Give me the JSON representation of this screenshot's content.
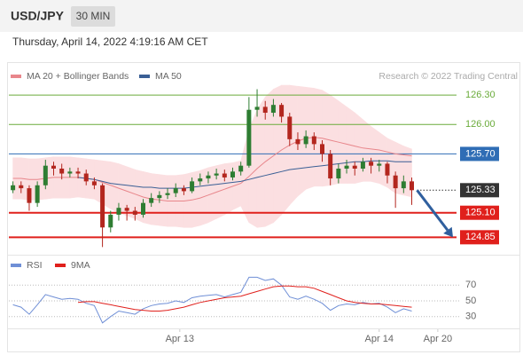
{
  "header": {
    "symbol": "USD/JPY",
    "interval": "30 MIN",
    "timestamp": "Thursday, April 14, 2022 4:19:16 AM CET"
  },
  "chart_data": [
    {
      "type": "candlestick",
      "annotation": "Research © 2022 Trading Central",
      "up_color": "#2e7d32",
      "down_color": "#b3261e",
      "x": [
        0,
        1,
        2,
        3,
        4,
        5,
        6,
        7,
        8,
        9,
        10,
        11,
        12,
        13,
        14,
        15,
        16,
        17,
        18,
        19,
        20,
        21,
        22,
        23,
        24,
        25,
        26,
        27,
        28,
        29,
        30,
        31,
        32,
        33,
        34,
        35,
        36,
        37,
        38,
        39,
        40,
        41,
        42,
        43,
        44,
        45,
        46,
        47,
        48,
        49
      ],
      "open": [
        125.33,
        125.38,
        125.35,
        125.2,
        125.38,
        125.58,
        125.55,
        125.5,
        125.52,
        125.5,
        125.42,
        125.38,
        124.95,
        125.08,
        125.15,
        125.12,
        125.08,
        125.2,
        125.25,
        125.28,
        125.3,
        125.35,
        125.32,
        125.42,
        125.45,
        125.48,
        125.5,
        125.46,
        125.52,
        125.58,
        126.15,
        126.18,
        126.12,
        126.2,
        126.08,
        125.85,
        125.8,
        125.88,
        125.8,
        125.7,
        125.45,
        125.55,
        125.58,
        125.55,
        125.62,
        125.58,
        125.6,
        125.48,
        125.35,
        125.42
      ],
      "high": [
        125.42,
        125.42,
        125.38,
        125.42,
        125.64,
        125.62,
        125.6,
        125.56,
        125.56,
        125.54,
        125.46,
        125.4,
        125.12,
        125.2,
        125.18,
        125.16,
        125.24,
        125.3,
        125.32,
        125.35,
        125.4,
        125.38,
        125.46,
        125.5,
        125.52,
        125.55,
        125.54,
        125.56,
        125.62,
        126.28,
        126.36,
        126.24,
        126.26,
        126.22,
        126.12,
        125.92,
        125.94,
        125.92,
        125.84,
        125.74,
        125.6,
        125.64,
        125.62,
        125.66,
        125.66,
        125.64,
        125.62,
        125.52,
        125.48,
        125.46
      ],
      "low": [
        125.3,
        125.3,
        125.12,
        125.16,
        125.34,
        125.48,
        125.44,
        125.46,
        125.45,
        125.38,
        125.34,
        124.75,
        124.9,
        125.02,
        125.02,
        125.02,
        125.05,
        125.16,
        125.2,
        125.24,
        125.26,
        125.28,
        125.3,
        125.38,
        125.4,
        125.44,
        125.42,
        125.43,
        125.48,
        125.56,
        126.08,
        126.05,
        126.08,
        126.02,
        125.78,
        125.74,
        125.76,
        125.74,
        125.62,
        125.38,
        125.4,
        125.5,
        125.48,
        125.52,
        125.5,
        125.52,
        125.4,
        125.15,
        125.3,
        125.18
      ],
      "close": [
        125.38,
        125.35,
        125.2,
        125.38,
        125.58,
        125.55,
        125.5,
        125.52,
        125.5,
        125.42,
        125.38,
        124.95,
        125.08,
        125.15,
        125.12,
        125.08,
        125.2,
        125.25,
        125.28,
        125.3,
        125.35,
        125.32,
        125.42,
        125.45,
        125.48,
        125.5,
        125.46,
        125.52,
        125.58,
        126.15,
        126.18,
        126.12,
        126.2,
        126.08,
        125.85,
        125.8,
        125.88,
        125.8,
        125.7,
        125.45,
        125.55,
        125.58,
        125.55,
        125.62,
        125.58,
        125.6,
        125.48,
        125.35,
        125.42,
        125.33
      ],
      "series": [
        {
          "name": "MA 20 + Bollinger Bands",
          "color": "#e8868b",
          "band_color": "#fbdfe1",
          "values": [
            125.45,
            125.45,
            125.44,
            125.44,
            125.45,
            125.46,
            125.46,
            125.46,
            125.46,
            125.45,
            125.44,
            125.41,
            125.38,
            125.35,
            125.32,
            125.29,
            125.26,
            125.24,
            125.23,
            125.22,
            125.22,
            125.22,
            125.23,
            125.25,
            125.28,
            125.31,
            125.34,
            125.37,
            125.4,
            125.47,
            125.55,
            125.62,
            125.68,
            125.74,
            125.79,
            125.83,
            125.86,
            125.87,
            125.86,
            125.84,
            125.82,
            125.8,
            125.78,
            125.76,
            125.75,
            125.74,
            125.72,
            125.7,
            125.69,
            125.68
          ],
          "upper": [
            125.66,
            125.66,
            125.65,
            125.65,
            125.66,
            125.67,
            125.67,
            125.67,
            125.66,
            125.65,
            125.64,
            125.63,
            125.62,
            125.6,
            125.57,
            125.54,
            125.52,
            125.5,
            125.49,
            125.48,
            125.48,
            125.49,
            125.51,
            125.53,
            125.56,
            125.58,
            125.6,
            125.61,
            125.63,
            125.95,
            126.15,
            126.28,
            126.36,
            126.4,
            126.4,
            126.39,
            126.38,
            126.37,
            126.35,
            126.3,
            126.24,
            126.18,
            126.12,
            126.05,
            125.98,
            125.92,
            125.86,
            125.82,
            125.78,
            125.75
          ],
          "lower": [
            125.24,
            125.24,
            125.23,
            125.23,
            125.24,
            125.25,
            125.25,
            125.25,
            125.26,
            125.25,
            125.24,
            125.19,
            125.14,
            125.1,
            125.07,
            125.04,
            125.0,
            124.98,
            124.97,
            124.96,
            124.96,
            124.95,
            124.95,
            124.97,
            125.0,
            125.04,
            125.08,
            125.13,
            125.17,
            125.0,
            124.95,
            124.96,
            125.0,
            125.08,
            125.18,
            125.27,
            125.34,
            125.37,
            125.37,
            125.38,
            125.4,
            125.4,
            125.4,
            125.42,
            125.42,
            125.4,
            125.36,
            125.3,
            125.28,
            125.26
          ]
        },
        {
          "name": "MA 50",
          "color": "#3a5f95",
          "values": [
            null,
            null,
            null,
            null,
            null,
            null,
            null,
            null,
            125.46,
            125.45,
            125.44,
            125.42,
            125.4,
            125.39,
            125.38,
            125.37,
            125.36,
            125.36,
            125.35,
            125.35,
            125.35,
            125.35,
            125.36,
            125.37,
            125.38,
            125.39,
            125.4,
            125.41,
            125.42,
            125.44,
            125.46,
            125.48,
            125.5,
            125.52,
            125.54,
            125.55,
            125.56,
            125.57,
            125.58,
            125.59,
            125.6,
            125.61,
            125.62,
            125.62,
            125.63,
            125.63,
            125.63,
            125.62,
            125.62,
            125.62
          ]
        }
      ],
      "levels": [
        {
          "value": 126.3,
          "label": "126.30",
          "color": "#6aab3a",
          "style": "thin"
        },
        {
          "value": 126.0,
          "label": "126.00",
          "color": "#6aab3a",
          "style": "thin"
        },
        {
          "value": 125.7,
          "label": "125.70",
          "color": "#2f6db5",
          "style": "thin"
        },
        {
          "value": 125.33,
          "color": "#333333",
          "style": "dotted"
        },
        {
          "value": 125.1,
          "label": "125.10",
          "color": "#e0201c",
          "style": "thick"
        },
        {
          "value": 124.85,
          "color": "#e0201c",
          "style": "thick"
        }
      ],
      "xlim": [
        -0.5,
        54.5
      ],
      "ylim": [
        124.69,
        126.41
      ]
    },
    {
      "type": "line",
      "x": [
        0,
        1,
        2,
        3,
        4,
        5,
        6,
        7,
        8,
        9,
        10,
        11,
        12,
        13,
        14,
        15,
        16,
        17,
        18,
        19,
        20,
        21,
        22,
        23,
        24,
        25,
        26,
        27,
        28,
        29,
        30,
        31,
        32,
        33,
        34,
        35,
        36,
        37,
        38,
        39,
        40,
        41,
        42,
        43,
        44,
        45,
        46,
        47,
        48,
        49
      ],
      "series": [
        {
          "name": "RSI",
          "color": "#6f8fd6",
          "values": [
            45,
            42,
            33,
            45,
            58,
            55,
            52,
            53,
            52,
            47,
            44,
            22,
            30,
            37,
            35,
            33,
            40,
            44,
            46,
            47,
            50,
            48,
            54,
            56,
            57,
            58,
            55,
            58,
            61,
            80,
            80,
            76,
            78,
            70,
            55,
            52,
            56,
            52,
            47,
            38,
            44,
            46,
            45,
            48,
            46,
            47,
            42,
            35,
            40,
            37
          ]
        },
        {
          "name": "9MA",
          "color": "#e0201c",
          "values": [
            null,
            null,
            null,
            null,
            null,
            null,
            null,
            null,
            48,
            49,
            49,
            47,
            45,
            43,
            41,
            39,
            38,
            37,
            37,
            38,
            40,
            42,
            45,
            48,
            50,
            52,
            54,
            55,
            56,
            59,
            62,
            65,
            68,
            69,
            69,
            68,
            68,
            66,
            62,
            58,
            54,
            50,
            48,
            47,
            46,
            46,
            45,
            44,
            43,
            42
          ]
        }
      ],
      "xlim": [
        -0.5,
        54.5
      ],
      "ylim": [
        15,
        85
      ],
      "yticks": [
        30,
        50,
        70
      ],
      "grid": true,
      "xticks": [
        {
          "value": 20.5,
          "label": "Apr 13"
        },
        {
          "value": 45,
          "label": "Apr 14"
        },
        {
          "value": 52.2,
          "label": "Apr 20"
        }
      ]
    }
  ]
}
